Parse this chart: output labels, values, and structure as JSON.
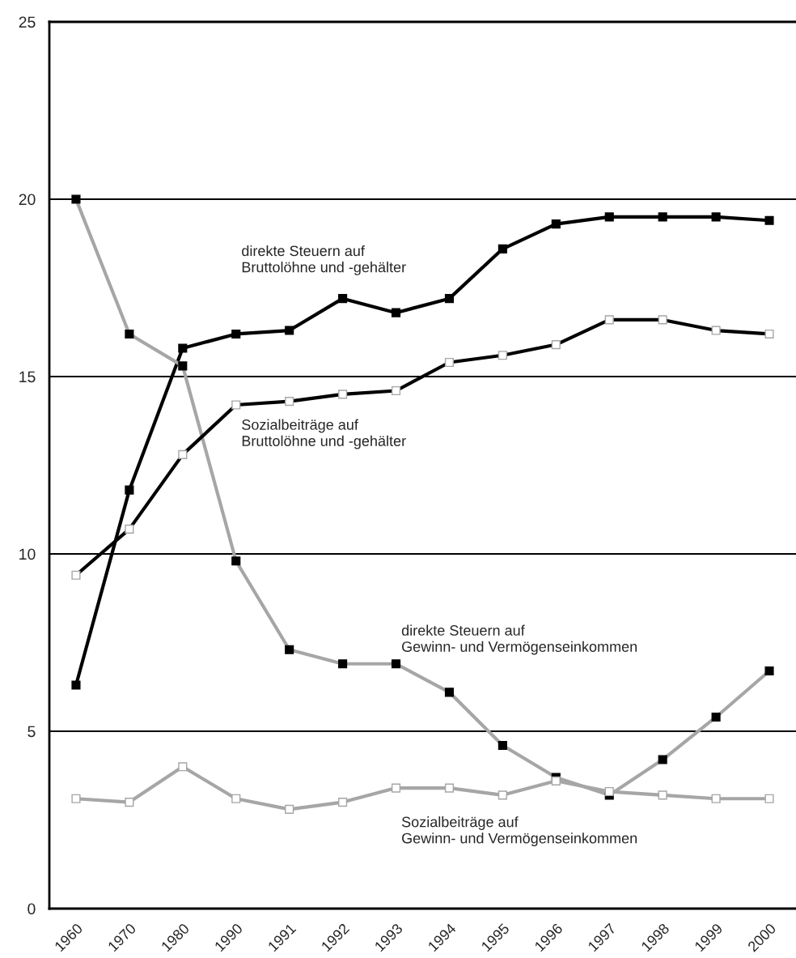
{
  "chart_data": {
    "type": "line",
    "categories": [
      "1960",
      "1970",
      "1980",
      "1990",
      "1991",
      "1992",
      "1993",
      "1994",
      "1995",
      "1996",
      "1997",
      "1998",
      "1999",
      "2000"
    ],
    "series": [
      {
        "name": "direkte Steuern auf\nBruttolöhne und -gehälter",
        "color": "#000000",
        "values": [
          6.3,
          11.8,
          15.8,
          16.2,
          16.3,
          17.2,
          16.8,
          17.2,
          18.6,
          19.3,
          19.5,
          19.5,
          19.5,
          19.4
        ]
      },
      {
        "name": "Sozialbeiträge auf\nBruttolöhne und -gehälter",
        "color": "#000000",
        "values": [
          9.4,
          10.7,
          12.8,
          14.2,
          14.3,
          14.5,
          14.6,
          15.4,
          15.6,
          15.9,
          16.6,
          16.6,
          16.3,
          16.2
        ]
      },
      {
        "name": "direkte Steuern auf\nGewinn- und Vermögenseinkommen",
        "color": "#a6a6a6",
        "values": [
          20.0,
          16.2,
          15.3,
          9.8,
          7.3,
          6.9,
          6.9,
          6.1,
          4.6,
          3.7,
          3.2,
          4.2,
          5.4,
          6.7
        ]
      },
      {
        "name": "Sozialbeiträge auf\nGewinn- und Vermögenseinkommen",
        "color": "#a6a6a6",
        "values": [
          3.1,
          3.0,
          4.0,
          3.1,
          2.8,
          3.0,
          3.4,
          3.4,
          3.2,
          3.6,
          3.3,
          3.2,
          3.1,
          3.1
        ]
      }
    ],
    "ylim": [
      0,
      25
    ],
    "yticks": [
      0,
      5,
      10,
      15,
      20,
      25
    ],
    "grid": "y",
    "legend": false,
    "marker": "square",
    "line_style": "solid"
  }
}
